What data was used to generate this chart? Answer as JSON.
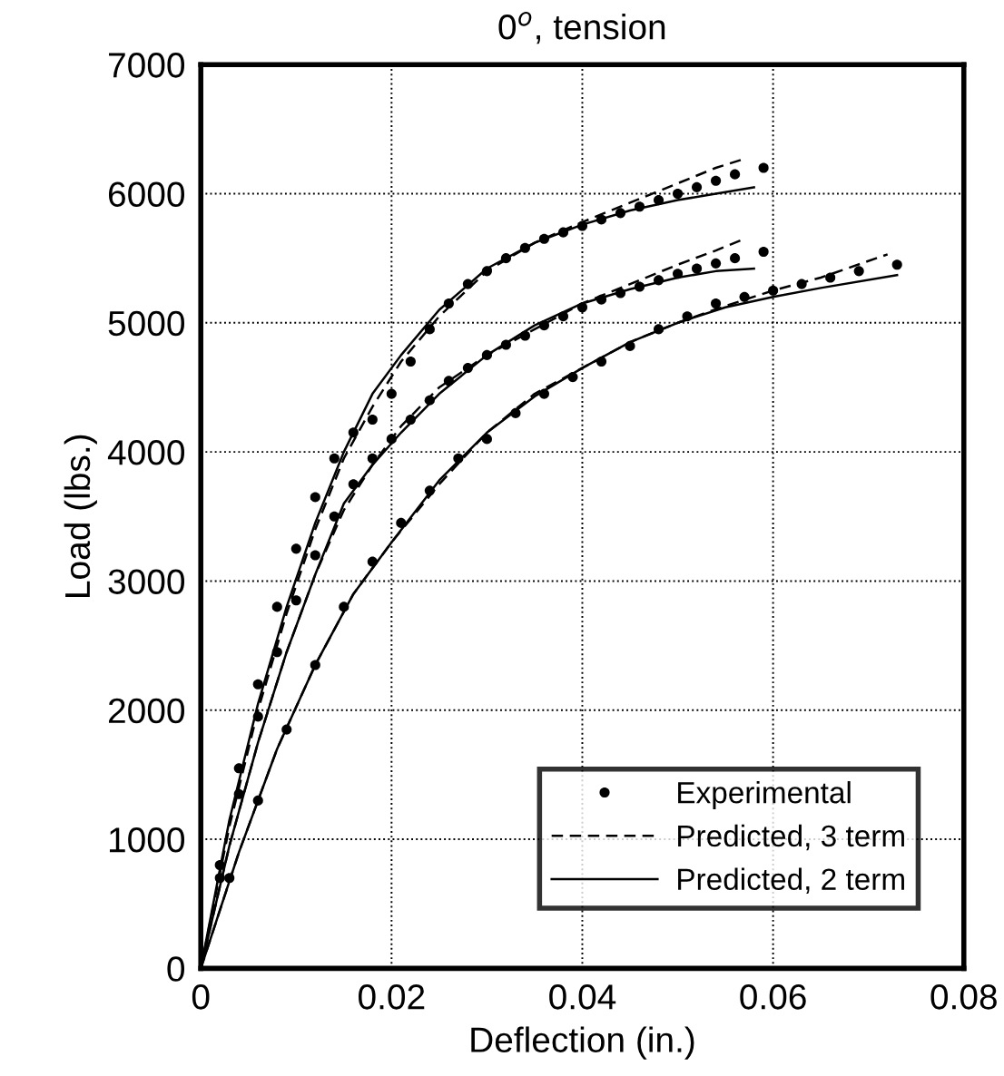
{
  "chart_data": {
    "type": "line",
    "title": "0$^{o}$, tension",
    "xlabel": "Deflection (in.)",
    "ylabel": "Load (lbs.)",
    "xlim": [
      0,
      0.08
    ],
    "ylim": [
      0,
      7000
    ],
    "xticks": [
      0,
      0.02,
      0.04,
      0.06,
      0.08
    ],
    "yticks": [
      0,
      1000,
      2000,
      3000,
      4000,
      5000,
      6000,
      7000
    ],
    "grid": true,
    "legend": "bottom right",
    "series": [
      {
        "name": "Experimental",
        "type": "scatter",
        "marker": "circle",
        "color": "#000000",
        "x": [
          0.002,
          0.004,
          0.006,
          0.008,
          0.01,
          0.012,
          0.014,
          0.016,
          0.018,
          0.02,
          0.022,
          0.024,
          0.026,
          0.028,
          0.03,
          0.032,
          0.034,
          0.036,
          0.038,
          0.04,
          0.042,
          0.044,
          0.046,
          0.048,
          0.05,
          0.052,
          0.054,
          0.056,
          0.059
        ],
        "values": [
          800,
          1550,
          2200,
          2800,
          3250,
          3650,
          3950,
          4150,
          4250,
          4450,
          4700,
          4950,
          5150,
          5300,
          5400,
          5500,
          5580,
          5650,
          5700,
          5750,
          5800,
          5850,
          5900,
          5950,
          6000,
          6050,
          6100,
          6150,
          6200
        ]
      },
      {
        "type": "scatter",
        "marker": "circle",
        "color": "#000000",
        "x": [
          0.002,
          0.004,
          0.006,
          0.008,
          0.01,
          0.012,
          0.014,
          0.016,
          0.018,
          0.02,
          0.022,
          0.024,
          0.026,
          0.028,
          0.03,
          0.032,
          0.034,
          0.036,
          0.038,
          0.04,
          0.042,
          0.044,
          0.046,
          0.048,
          0.05,
          0.052,
          0.054,
          0.056,
          0.059
        ],
        "values": [
          700,
          1350,
          1950,
          2450,
          2850,
          3200,
          3500,
          3750,
          3950,
          4100,
          4250,
          4400,
          4550,
          4650,
          4750,
          4830,
          4900,
          4980,
          5050,
          5120,
          5180,
          5230,
          5280,
          5330,
          5380,
          5420,
          5460,
          5500,
          5550
        ]
      },
      {
        "type": "scatter",
        "marker": "circle",
        "color": "#000000",
        "x": [
          0.003,
          0.006,
          0.009,
          0.012,
          0.015,
          0.018,
          0.021,
          0.024,
          0.027,
          0.03,
          0.033,
          0.036,
          0.039,
          0.042,
          0.045,
          0.048,
          0.051,
          0.054,
          0.057,
          0.06,
          0.063,
          0.066,
          0.069,
          0.073
        ],
        "values": [
          700,
          1300,
          1850,
          2350,
          2800,
          3150,
          3450,
          3700,
          3950,
          4100,
          4300,
          4450,
          4580,
          4700,
          4820,
          4950,
          5050,
          5150,
          5200,
          5250,
          5300,
          5350,
          5400,
          5450
        ]
      },
      {
        "name": "Predicted, 3 term",
        "line_style": "dashed",
        "color": "#000000",
        "x": [
          0,
          0.003,
          0.006,
          0.009,
          0.012,
          0.015,
          0.018,
          0.021,
          0.025,
          0.03,
          0.035,
          0.04,
          0.045,
          0.05,
          0.054,
          0.057
        ],
        "values": [
          0,
          1100,
          2000,
          2750,
          3400,
          3950,
          4350,
          4700,
          5050,
          5400,
          5620,
          5780,
          5930,
          6080,
          6200,
          6270
        ]
      },
      {
        "line_style": "dashed",
        "color": "#000000",
        "x": [
          0,
          0.003,
          0.006,
          0.009,
          0.012,
          0.015,
          0.018,
          0.021,
          0.025,
          0.03,
          0.035,
          0.04,
          0.045,
          0.05,
          0.054,
          0.057
        ],
        "values": [
          0,
          950,
          1750,
          2450,
          3050,
          3550,
          3900,
          4200,
          4500,
          4750,
          4950,
          5150,
          5300,
          5450,
          5560,
          5650
        ]
      },
      {
        "line_style": "dashed",
        "color": "#000000",
        "x": [
          0,
          0.004,
          0.008,
          0.012,
          0.016,
          0.02,
          0.025,
          0.03,
          0.035,
          0.04,
          0.045,
          0.05,
          0.055,
          0.06,
          0.065,
          0.072
        ],
        "values": [
          0,
          900,
          1700,
          2350,
          2900,
          3300,
          3750,
          4150,
          4450,
          4650,
          4850,
          5000,
          5130,
          5250,
          5350,
          5530
        ]
      },
      {
        "name": "Predicted, 2 term",
        "line_style": "solid",
        "color": "#000000",
        "x": [
          0,
          0.003,
          0.006,
          0.009,
          0.012,
          0.015,
          0.018,
          0.021,
          0.025,
          0.03,
          0.035,
          0.04,
          0.045,
          0.05,
          0.054,
          0.058
        ],
        "values": [
          0,
          1150,
          2050,
          2800,
          3450,
          4000,
          4450,
          4750,
          5100,
          5420,
          5620,
          5760,
          5870,
          5950,
          6000,
          6050
        ]
      },
      {
        "line_style": "solid",
        "color": "#000000",
        "x": [
          0,
          0.003,
          0.006,
          0.009,
          0.012,
          0.015,
          0.018,
          0.021,
          0.025,
          0.03,
          0.035,
          0.04,
          0.045,
          0.05,
          0.054,
          0.058
        ],
        "values": [
          0,
          950,
          1750,
          2450,
          3050,
          3600,
          3900,
          4150,
          4450,
          4750,
          4980,
          5150,
          5260,
          5350,
          5400,
          5420
        ]
      },
      {
        "line_style": "solid",
        "color": "#000000",
        "x": [
          0,
          0.004,
          0.008,
          0.012,
          0.016,
          0.02,
          0.025,
          0.03,
          0.035,
          0.04,
          0.045,
          0.05,
          0.055,
          0.06,
          0.065,
          0.073
        ],
        "values": [
          0,
          900,
          1700,
          2350,
          2900,
          3300,
          3780,
          4150,
          4430,
          4650,
          4850,
          5000,
          5120,
          5200,
          5270,
          5370
        ]
      }
    ]
  }
}
